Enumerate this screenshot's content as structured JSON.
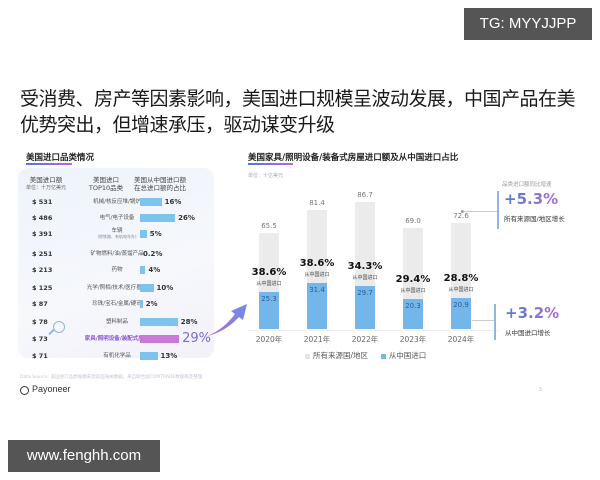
{
  "watermarks": {
    "top_right": "TG: MYYJJPP",
    "bottom_left": "www.fenghh.com"
  },
  "headline": "受消费、房产等因素影响，美国进口规模呈波动发展，中国产品在美优势突出，但增速承压，驱动谋变升级",
  "left_table": {
    "title": "美国进口品类情况",
    "columns": {
      "amount": "美国进口额",
      "amount_unit": "单位：十万亿美元",
      "category": "美国进口",
      "category_line2": "TOP10品类",
      "share": "美国从中国进口额",
      "share_line2": "在总进口额的占比"
    },
    "rows": [
      {
        "amount": "$ 531",
        "category": "机械/核反应堆/锅炉",
        "category_sub": "",
        "share": "16%",
        "share_value": 16,
        "highlight": false
      },
      {
        "amount": "$ 486",
        "category": "电气/电子设备",
        "category_sub": "",
        "share": "26%",
        "share_value": 26,
        "highlight": false
      },
      {
        "amount": "$ 391",
        "category": "车辆",
        "category_sub": "(除铁路、有轨电车外)",
        "share": "5%",
        "share_value": 5,
        "highlight": false
      },
      {
        "amount": "$ 251",
        "category": "矿物燃料/油/蒸馏产品",
        "category_sub": "",
        "share": "0.2%",
        "share_value": 0.2,
        "highlight": false
      },
      {
        "amount": "$ 213",
        "category": "药物",
        "category_sub": "",
        "share": "4%",
        "share_value": 4,
        "highlight": false
      },
      {
        "amount": "$ 125",
        "category": "光学/照相/技术/医疗器械",
        "category_sub": "",
        "share": "10%",
        "share_value": 10,
        "highlight": false
      },
      {
        "amount": "$ 87",
        "category": "珍珠/宝石/金属/硬币",
        "category_sub": "",
        "share": "2%",
        "share_value": 2,
        "highlight": false
      },
      {
        "amount": "$ 78",
        "category": "塑料制品",
        "category_sub": "",
        "share": "28%",
        "share_value": 28,
        "highlight": false
      },
      {
        "amount": "$ 73",
        "category": "家具/照明设备/装配式房屋",
        "category_sub": "",
        "share": "29%",
        "share_value": 29,
        "highlight": true
      },
      {
        "amount": "$ 71",
        "category": "有机化学品",
        "category_sub": "",
        "share": "13%",
        "share_value": 13,
        "highlight": false
      }
    ]
  },
  "right_chart": {
    "title": "美国家具/照明设备/装备式房屋进口额及从中国进口占比",
    "unit": "单位：十亿美元",
    "years": [
      "2020年",
      "2021年",
      "2022年",
      "2023年",
      "2024年"
    ],
    "totals": [
      "65.5",
      "81.4",
      "86.7",
      "69.0",
      "72.6"
    ],
    "china": [
      "25.3",
      "31.4",
      "29.7",
      "20.3",
      "20.9"
    ],
    "shares": [
      "38.6%",
      "38.6%",
      "34.3%",
      "29.4%",
      "28.8%"
    ],
    "share_caption": "从中国进口",
    "legend": [
      "所有来源国/地区",
      "从中国进口"
    ],
    "growth_header": "品类进口额同比增速",
    "growth_all": "+5.3%",
    "growth_all_caption": "所有来源国/地区增长",
    "growth_china": "+3.2%",
    "growth_china_caption": "从中国进口增长"
  },
  "footer": {
    "source": "Data Source: 美国进口品类规模来源美国海关数据，来自联合国COMTRADE数据库及整理",
    "logo": "Payoneer",
    "page": "5"
  },
  "colors": {
    "china_bar": "#72b6ea",
    "total_bar": "#ebebeb",
    "highlight": "#c97ad8",
    "accent_blue": "#4a7ed8",
    "accent_purple": "#b36ad8"
  },
  "chart_data": [
    {
      "type": "table",
      "title": "美国进口品类情况",
      "columns": [
        "美国进口额 (十万亿美元)",
        "美国进口TOP10品类",
        "美国从中国进口额在总进口额的占比"
      ],
      "rows": [
        [
          "$531",
          "机械/核反应堆/锅炉",
          "16%"
        ],
        [
          "$486",
          "电气/电子设备",
          "26%"
        ],
        [
          "$391",
          "车辆(除铁路、有轨电车外)",
          "5%"
        ],
        [
          "$251",
          "矿物燃料/油/蒸馏产品",
          "0.2%"
        ],
        [
          "$213",
          "药物",
          "4%"
        ],
        [
          "$125",
          "光学/照相/技术/医疗器械",
          "10%"
        ],
        [
          "$87",
          "珍珠/宝石/金属/硬币",
          "2%"
        ],
        [
          "$78",
          "塑料制品",
          "28%"
        ],
        [
          "$73",
          "家具/照明设备/装配式房屋",
          "29%"
        ],
        [
          "$71",
          "有机化学品",
          "13%"
        ]
      ]
    },
    {
      "type": "bar",
      "title": "美国家具/照明设备/装备式房屋进口额及从中国进口占比",
      "categories": [
        "2020年",
        "2021年",
        "2022年",
        "2023年",
        "2024年"
      ],
      "series": [
        {
          "name": "所有来源国/地区",
          "values": [
            65.5,
            81.4,
            86.7,
            69.0,
            72.6
          ]
        },
        {
          "name": "从中国进口",
          "values": [
            25.3,
            31.4,
            29.7,
            20.3,
            20.9
          ]
        }
      ],
      "annotations": {
        "china_share": [
          "38.6%",
          "38.6%",
          "34.3%",
          "29.4%",
          "28.8%"
        ],
        "yoy_growth_all": "+5.3%",
        "yoy_growth_china": "+3.2%"
      },
      "xlabel": "",
      "ylabel": "十亿美元",
      "ylim": [
        0,
        100
      ],
      "grid": false,
      "legend_position": "bottom"
    }
  ]
}
